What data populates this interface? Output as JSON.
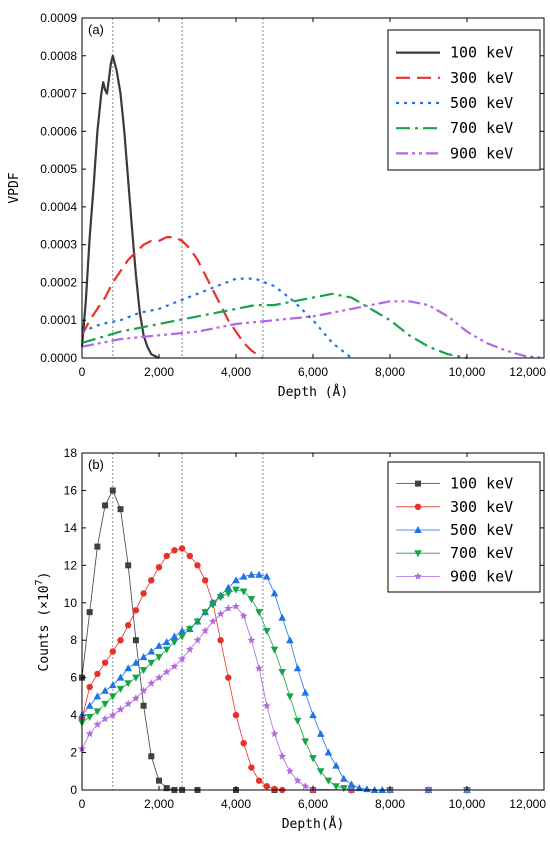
{
  "chart_data": [
    {
      "type": "line",
      "panel_label": "(a)",
      "xlabel": "Depth (Å)",
      "ylabel": "VPDF",
      "xlim": [
        0,
        12000
      ],
      "ylim": [
        0,
        0.0009
      ],
      "xticks": [
        0,
        2000,
        4000,
        6000,
        8000,
        10000,
        12000
      ],
      "xtick_labels": [
        "0",
        "2,000",
        "4,000",
        "6,000",
        "8,000",
        "10,000",
        "12,000"
      ],
      "yticks": [
        0,
        0.0001,
        0.0002,
        0.0003,
        0.0004,
        0.0005,
        0.0006,
        0.0007,
        0.0008,
        0.0009
      ],
      "ytick_labels": [
        "0.0000",
        "0.0001",
        "0.0002",
        "0.0003",
        "0.0004",
        "0.0005",
        "0.0006",
        "0.0007",
        "0.0008",
        "0.0009"
      ],
      "vlines": [
        800,
        2600,
        4700
      ],
      "legend_position": "top-right",
      "grid": false,
      "series": [
        {
          "name": "100 keV",
          "color": "#3a3a3a",
          "dash": "solid",
          "x": [
            0,
            100,
            200,
            300,
            400,
            500,
            550,
            600,
            650,
            700,
            750,
            800,
            850,
            900,
            950,
            1000,
            1100,
            1200,
            1300,
            1400,
            1500,
            1600,
            1700,
            1800,
            1900,
            2000
          ],
          "y": [
            3e-05,
            0.00015,
            0.00032,
            0.00045,
            0.0006,
            0.0007,
            0.00073,
            0.00071,
            0.0007,
            0.00074,
            0.00078,
            0.0008,
            0.00078,
            0.00076,
            0.00073,
            0.0007,
            0.0006,
            0.00047,
            0.00034,
            0.00022,
            0.00012,
            6e-05,
            3e-05,
            1e-05,
            5e-06,
            0
          ]
        },
        {
          "name": "300 keV",
          "color": "#e8302b",
          "dash": "14,7",
          "x": [
            0,
            200,
            400,
            600,
            800,
            1000,
            1200,
            1400,
            1600,
            1800,
            2000,
            2200,
            2400,
            2600,
            2800,
            3000,
            3200,
            3400,
            3600,
            3800,
            4000,
            4200,
            4400,
            4600,
            4700
          ],
          "y": [
            6e-05,
            0.0001,
            0.00013,
            0.00016,
            0.0002,
            0.00023,
            0.00026,
            0.00028,
            0.0003,
            0.00031,
            0.00031,
            0.00032,
            0.00032,
            0.00031,
            0.00029,
            0.00026,
            0.00022,
            0.00018,
            0.00014,
            0.0001,
            7e-05,
            4e-05,
            2e-05,
            5e-06,
            0
          ]
        },
        {
          "name": "500 keV",
          "color": "#1e73e8",
          "dash": "3,5",
          "x": [
            0,
            500,
            1000,
            1500,
            2000,
            2500,
            3000,
            3500,
            4000,
            4500,
            5000,
            5500,
            6000,
            6500,
            7000
          ],
          "y": [
            7e-05,
            9e-05,
            0.0001,
            0.00012,
            0.00013,
            0.00015,
            0.00017,
            0.00019,
            0.00021,
            0.00021,
            0.00019,
            0.00015,
            0.0001,
            4e-05,
            0
          ]
        },
        {
          "name": "700 keV",
          "color": "#16a34a",
          "dash": "14,5,3,5",
          "x": [
            0,
            1000,
            2000,
            3000,
            3500,
            4000,
            4500,
            5000,
            5500,
            6000,
            6500,
            7000,
            7500,
            8000,
            8500,
            9000,
            9500,
            10000
          ],
          "y": [
            4e-05,
            7e-05,
            9e-05,
            0.00011,
            0.00012,
            0.00013,
            0.00014,
            0.00014,
            0.00015,
            0.00016,
            0.00017,
            0.00016,
            0.00013,
            0.0001,
            6e-05,
            3e-05,
            1e-05,
            0
          ]
        },
        {
          "name": "900 keV",
          "color": "#b566e0",
          "dash": "12,4,3,4,3,4",
          "x": [
            0,
            1000,
            2000,
            3000,
            4000,
            5000,
            6000,
            6500,
            7000,
            7500,
            8000,
            8500,
            9000,
            9500,
            10000,
            10500,
            11000,
            11500,
            12000
          ],
          "y": [
            3e-05,
            5e-05,
            6e-05,
            7e-05,
            9e-05,
            0.0001,
            0.00011,
            0.00012,
            0.00013,
            0.00014,
            0.00015,
            0.00015,
            0.00014,
            0.00011,
            7e-05,
            4e-05,
            2e-05,
            5e-06,
            0
          ]
        }
      ]
    },
    {
      "type": "line",
      "panel_label": "(b)",
      "xlabel": "Depth(Å)",
      "ylabel": "Counts (×10",
      "ylabel_sup": "7",
      "ylabel_end": ")",
      "xlim": [
        0,
        12000
      ],
      "ylim": [
        0,
        18
      ],
      "xticks": [
        0,
        2000,
        4000,
        6000,
        8000,
        10000,
        12000
      ],
      "xtick_labels": [
        "0",
        "2,000",
        "4,000",
        "6,000",
        "8,000",
        "10,000",
        "12,000"
      ],
      "yticks": [
        0,
        2,
        4,
        6,
        8,
        10,
        12,
        14,
        16,
        18
      ],
      "ytick_labels": [
        "0",
        "2",
        "4",
        "6",
        "8",
        "10",
        "12",
        "14",
        "16",
        "18"
      ],
      "vlines": [
        800,
        2600,
        4700
      ],
      "legend_position": "top-right",
      "grid": false,
      "series": [
        {
          "name": "100 keV",
          "color": "#404040",
          "marker": "square",
          "x": [
            0,
            200,
            400,
            600,
            800,
            1000,
            1200,
            1400,
            1600,
            1800,
            2000,
            2200,
            2400,
            2600,
            3000,
            4000,
            5000,
            6000,
            7000,
            8000,
            9000,
            10000
          ],
          "y": [
            6.0,
            9.5,
            13.0,
            15.2,
            16.0,
            15.0,
            12.0,
            8.0,
            4.5,
            1.8,
            0.5,
            0.1,
            0,
            0,
            0,
            0,
            0,
            0,
            0,
            0,
            0,
            0
          ]
        },
        {
          "name": "300 keV",
          "color": "#e8302b",
          "marker": "circle",
          "x": [
            0,
            200,
            400,
            600,
            800,
            1000,
            1200,
            1400,
            1600,
            1800,
            2000,
            2200,
            2400,
            2600,
            2800,
            3000,
            3200,
            3400,
            3600,
            3800,
            4000,
            4200,
            4400,
            4600,
            4800,
            5000,
            5200,
            6000,
            7000,
            8000,
            9000,
            10000
          ],
          "y": [
            3.8,
            5.5,
            6.2,
            6.8,
            7.4,
            8.0,
            8.8,
            9.6,
            10.5,
            11.2,
            11.9,
            12.5,
            12.8,
            12.9,
            12.5,
            12.0,
            11.2,
            10.0,
            8.0,
            6.0,
            4.0,
            2.5,
            1.2,
            0.5,
            0.2,
            0.05,
            0,
            0,
            0,
            0,
            0,
            0
          ]
        },
        {
          "name": "500 keV",
          "color": "#1e73e8",
          "marker": "triangle-up",
          "x": [
            0,
            200,
            400,
            600,
            800,
            1000,
            1200,
            1400,
            1600,
            1800,
            2000,
            2200,
            2400,
            2600,
            2800,
            3000,
            3200,
            3400,
            3600,
            3800,
            4000,
            4200,
            4400,
            4600,
            4800,
            5000,
            5200,
            5400,
            5600,
            5800,
            6000,
            6200,
            6400,
            6600,
            6800,
            7000,
            7200,
            7400,
            7600,
            7800,
            8000,
            9000,
            10000
          ],
          "y": [
            4.0,
            4.5,
            5.0,
            5.3,
            5.6,
            6.0,
            6.5,
            6.8,
            7.1,
            7.4,
            7.7,
            7.9,
            8.2,
            8.5,
            8.6,
            9.0,
            9.5,
            10.0,
            10.4,
            10.8,
            11.2,
            11.4,
            11.5,
            11.5,
            11.4,
            10.5,
            9.2,
            8.0,
            6.5,
            5.2,
            4.0,
            3.0,
            2.0,
            1.3,
            0.6,
            0.3,
            0.1,
            0.05,
            0,
            0,
            0,
            0,
            0
          ]
        },
        {
          "name": "700 keV",
          "color": "#16a34a",
          "marker": "triangle-down",
          "x": [
            0,
            200,
            400,
            600,
            800,
            1000,
            1200,
            1400,
            1600,
            1800,
            2000,
            2200,
            2400,
            2600,
            2800,
            3000,
            3200,
            3400,
            3600,
            3800,
            4000,
            4200,
            4400,
            4600,
            4800,
            5000,
            5200,
            5400,
            5600,
            5800,
            6000,
            6200,
            6400,
            6600,
            6800,
            7000,
            8000,
            9000,
            10000
          ],
          "y": [
            3.6,
            3.9,
            4.2,
            4.6,
            5.0,
            5.4,
            5.7,
            6.0,
            6.4,
            6.8,
            7.1,
            7.5,
            7.9,
            8.2,
            8.6,
            9.0,
            9.5,
            9.9,
            10.3,
            10.5,
            10.7,
            10.6,
            10.2,
            9.5,
            8.5,
            7.5,
            6.3,
            5.0,
            3.7,
            2.6,
            1.7,
            1.0,
            0.5,
            0.2,
            0.1,
            0,
            0,
            0,
            0
          ]
        },
        {
          "name": "900 keV",
          "color": "#b566e0",
          "marker": "star",
          "x": [
            0,
            200,
            400,
            600,
            800,
            1000,
            1200,
            1400,
            1600,
            1800,
            2000,
            2200,
            2400,
            2600,
            2800,
            3000,
            3200,
            3400,
            3600,
            3800,
            4000,
            4200,
            4400,
            4600,
            4800,
            5000,
            5200,
            5400,
            5600,
            5800,
            6000,
            7000,
            8000,
            9000,
            10000
          ],
          "y": [
            2.2,
            3.0,
            3.5,
            3.8,
            4.0,
            4.3,
            4.6,
            4.9,
            5.3,
            5.7,
            6.0,
            6.3,
            6.6,
            7.0,
            7.5,
            8.0,
            8.5,
            9.0,
            9.4,
            9.7,
            9.8,
            9.3,
            8.0,
            6.5,
            4.5,
            3.0,
            1.8,
            1.0,
            0.5,
            0.2,
            0.05,
            0,
            0,
            0,
            0
          ]
        }
      ]
    }
  ]
}
